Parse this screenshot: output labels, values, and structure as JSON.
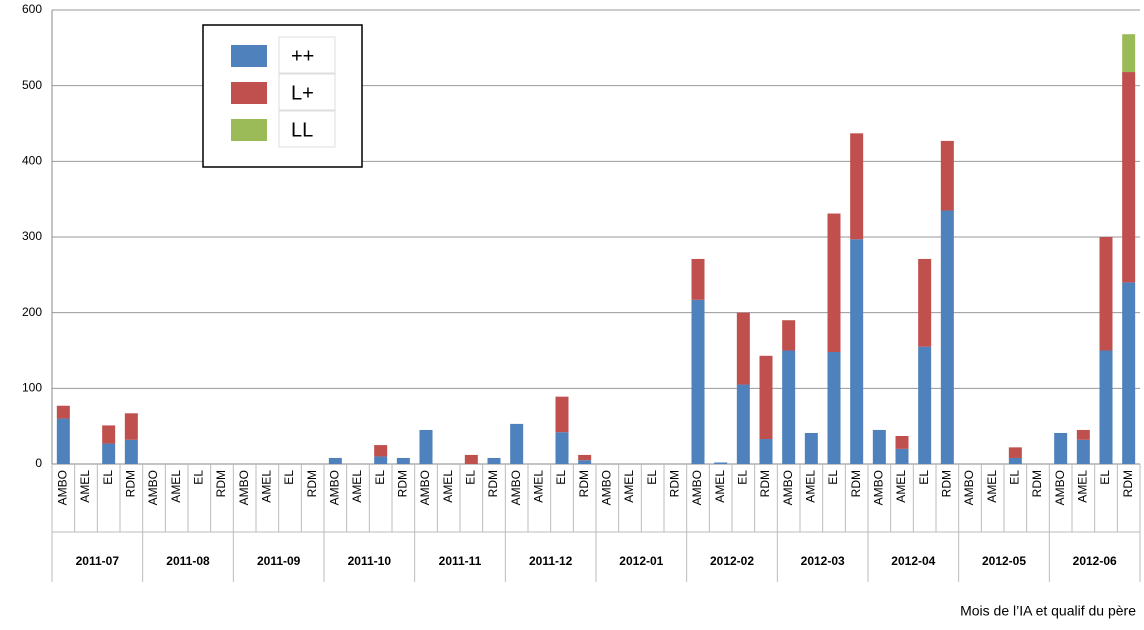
{
  "chart_data": {
    "type": "bar",
    "stacked": true,
    "x_label": "Mois de l’IA et qualif du père",
    "groups": [
      "2011-07",
      "2011-08",
      "2011-09",
      "2011-10",
      "2011-11",
      "2011-12",
      "2012-01",
      "2012-02",
      "2012-03",
      "2012-04",
      "2012-05",
      "2012-06"
    ],
    "categories": [
      "AMBO",
      "AMEL",
      "EL",
      "RDM",
      "AMBO",
      "AMEL",
      "EL",
      "RDM",
      "AMBO",
      "AMEL",
      "EL",
      "RDM",
      "AMBO",
      "AMEL",
      "EL",
      "RDM",
      "AMBO",
      "AMEL",
      "EL",
      "RDM",
      "AMBO",
      "AMEL",
      "EL",
      "RDM",
      "AMBO",
      "AMEL",
      "EL",
      "RDM",
      "AMBO",
      "AMEL",
      "EL",
      "RDM",
      "AMBO",
      "AMEL",
      "EL",
      "RDM",
      "AMBO",
      "AMEL",
      "EL",
      "RDM",
      "AMBO",
      "AMEL",
      "EL",
      "RDM",
      "AMBO",
      "AMEL",
      "EL",
      "RDM"
    ],
    "series": [
      {
        "name": "++",
        "color": "#4f81bd",
        "values": [
          60,
          0,
          27,
          32,
          0,
          0,
          0,
          0,
          0,
          0,
          0,
          0,
          8,
          0,
          10,
          8,
          45,
          0,
          0,
          8,
          53,
          0,
          42,
          5,
          0,
          0,
          0,
          0,
          217,
          2,
          105,
          33,
          150,
          41,
          148,
          297,
          45,
          20,
          155,
          335,
          0,
          0,
          8,
          0,
          41,
          32,
          150,
          240
        ]
      },
      {
        "name": "L+",
        "color": "#c0504d",
        "values": [
          17,
          0,
          24,
          35,
          0,
          0,
          0,
          0,
          0,
          0,
          0,
          0,
          0,
          0,
          15,
          0,
          0,
          0,
          12,
          0,
          0,
          0,
          47,
          7,
          0,
          0,
          0,
          0,
          54,
          0,
          95,
          110,
          40,
          0,
          183,
          140,
          0,
          17,
          116,
          92,
          0,
          0,
          14,
          0,
          0,
          13,
          150,
          278
        ]
      },
      {
        "name": "LL",
        "color": "#9bbb59",
        "values": [
          0,
          0,
          0,
          0,
          0,
          0,
          0,
          0,
          0,
          0,
          0,
          0,
          0,
          0,
          0,
          0,
          0,
          0,
          0,
          0,
          0,
          0,
          0,
          0,
          0,
          0,
          0,
          0,
          0,
          0,
          0,
          0,
          0,
          0,
          0,
          0,
          0,
          0,
          0,
          0,
          0,
          0,
          0,
          0,
          0,
          0,
          0,
          50
        ]
      }
    ],
    "ylim": [
      0,
      600
    ],
    "yticks": [
      0,
      100,
      200,
      300,
      400,
      500,
      600
    ],
    "grid": true,
    "legend": "upper left"
  }
}
